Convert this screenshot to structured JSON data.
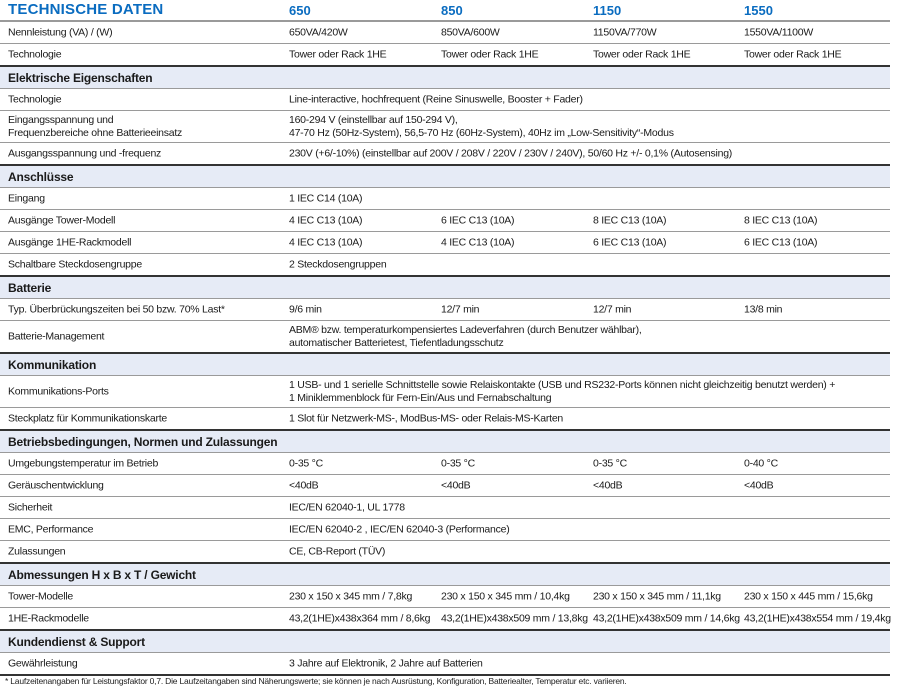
{
  "header": {
    "title": "TECHNISCHE DATEN",
    "models": [
      "650",
      "850",
      "1150",
      "1550"
    ]
  },
  "colors": {
    "title": "#0a6cc0",
    "section_bg": "#e6ebf6"
  },
  "rows": [
    {
      "type": "row",
      "label": [
        "Nennleistung (VA) / (W)"
      ],
      "cells": [
        [
          "650VA/420W"
        ],
        [
          "850VA/600W"
        ],
        [
          "1150VA/770W"
        ],
        [
          "1550VA/1100W"
        ]
      ]
    },
    {
      "type": "row",
      "label": [
        "Technologie"
      ],
      "cells": [
        [
          "Tower oder Rack 1HE"
        ],
        [
          "Tower oder Rack 1HE"
        ],
        [
          "Tower oder Rack 1HE"
        ],
        [
          "Tower oder Rack 1HE"
        ]
      ]
    },
    {
      "type": "section",
      "title": "Elektrische Eigenschaften"
    },
    {
      "type": "row",
      "label": [
        "Technologie"
      ],
      "cells": [
        [
          "Line-interactive, hochfrequent (Reine Sinuswelle, Booster + Fader)"
        ]
      ]
    },
    {
      "type": "row",
      "label": [
        "Eingangsspannung und",
        "Frequenzbereiche ohne Batterieeinsatz"
      ],
      "cells": [
        [
          "160-294 V (einstellbar auf 150-294 V),",
          "47-70 Hz (50Hz-System), 56,5-70 Hz (60Hz-System), 40Hz im „Low-Sensitivity“-Modus"
        ]
      ]
    },
    {
      "type": "row",
      "label": [
        "Ausgangsspannung und -frequenz"
      ],
      "cells": [
        [
          "230V (+6/-10%) (einstellbar auf 200V / 208V / 220V / 230V / 240V), 50/60 Hz +/- 0,1% (Autosensing)"
        ]
      ]
    },
    {
      "type": "section",
      "title": "Anschlüsse"
    },
    {
      "type": "row",
      "label": [
        "Eingang"
      ],
      "cells": [
        [
          "1 IEC C14 (10A)"
        ]
      ]
    },
    {
      "type": "row",
      "label": [
        "Ausgänge Tower-Modell"
      ],
      "cells": [
        [
          "4 IEC C13 (10A)"
        ],
        [
          "6 IEC C13 (10A)"
        ],
        [
          "8 IEC C13 (10A)"
        ],
        [
          "8 IEC C13 (10A)"
        ]
      ]
    },
    {
      "type": "row",
      "label": [
        "Ausgänge 1HE-Rackmodell"
      ],
      "cells": [
        [
          "4 IEC C13 (10A)"
        ],
        [
          "4 IEC C13 (10A)"
        ],
        [
          "6 IEC C13 (10A)"
        ],
        [
          "6 IEC C13 (10A)"
        ]
      ]
    },
    {
      "type": "row",
      "label": [
        "Schaltbare Steckdosengruppe"
      ],
      "cells": [
        [
          "2 Steckdosengruppen"
        ]
      ]
    },
    {
      "type": "section",
      "title": "Batterie"
    },
    {
      "type": "row",
      "label": [
        "Typ. Überbrückungszeiten bei 50 bzw. 70% Last*"
      ],
      "cells": [
        [
          "9/6 min"
        ],
        [
          "12/7 min"
        ],
        [
          "12/7 min"
        ],
        [
          "13/8 min"
        ]
      ]
    },
    {
      "type": "row",
      "label": [
        "Batterie-Management"
      ],
      "cells": [
        [
          "ABM® bzw. temperaturkompensiertes Ladeverfahren (durch Benutzer wählbar),",
          "automatischer Batterietest, Tiefentladungsschutz"
        ]
      ]
    },
    {
      "type": "section",
      "title": "Kommunikation"
    },
    {
      "type": "row",
      "label": [
        "Kommunikations-Ports"
      ],
      "cells": [
        [
          "1 USB- und 1 serielle Schnittstelle sowie Relaiskontakte (USB und RS232-Ports können nicht gleichzeitig benutzt werden) +",
          "1 Miniklemmenblock für Fern-Ein/Aus und Fernabschaltung"
        ]
      ]
    },
    {
      "type": "row",
      "label": [
        "Steckplatz für Kommunikationskarte"
      ],
      "cells": [
        [
          "1 Slot für Netzwerk-MS-, ModBus-MS- oder Relais-MS-Karten"
        ]
      ]
    },
    {
      "type": "section",
      "title": "Betriebsbedingungen, Normen und Zulassungen"
    },
    {
      "type": "row",
      "label": [
        "Umgebungstemperatur im Betrieb"
      ],
      "cells": [
        [
          "0-35 °C"
        ],
        [
          "0-35 °C"
        ],
        [
          "0-35 °C"
        ],
        [
          "0-40 °C"
        ]
      ]
    },
    {
      "type": "row",
      "label": [
        "Geräuschentwicklung"
      ],
      "cells": [
        [
          "<40dB"
        ],
        [
          "<40dB"
        ],
        [
          "<40dB"
        ],
        [
          "<40dB"
        ]
      ]
    },
    {
      "type": "row",
      "label": [
        "Sicherheit"
      ],
      "cells": [
        [
          "IEC/EN 62040-1, UL 1778"
        ]
      ]
    },
    {
      "type": "row",
      "label": [
        "EMC, Performance"
      ],
      "cells": [
        [
          "IEC/EN 62040-2 , IEC/EN 62040-3 (Performance)"
        ]
      ]
    },
    {
      "type": "row",
      "label": [
        "Zulassungen"
      ],
      "cells": [
        [
          "CE, CB-Report (TÜV)"
        ]
      ]
    },
    {
      "type": "section",
      "title": "Abmessungen H x B x T / Gewicht"
    },
    {
      "type": "row",
      "label": [
        "Tower-Modelle"
      ],
      "cells": [
        [
          "230 x 150 x 345 mm / 7,8kg"
        ],
        [
          "230 x 150 x 345 mm / 10,4kg"
        ],
        [
          "230 x 150 x 345 mm / 11,1kg"
        ],
        [
          "230 x 150 x 445 mm / 15,6kg"
        ]
      ]
    },
    {
      "type": "row",
      "label": [
        "1HE-Rackmodelle"
      ],
      "cells": [
        [
          "43,2(1HE)x438x364 mm / 8,6kg"
        ],
        [
          "43,2(1HE)x438x509 mm / 13,8kg"
        ],
        [
          "43,2(1HE)x438x509 mm / 14,6kg"
        ],
        [
          "43,2(1HE)x438x554 mm / 19,4kg"
        ]
      ]
    },
    {
      "type": "section",
      "title": "Kundendienst & Support"
    },
    {
      "type": "row",
      "label": [
        "Gewährleistung"
      ],
      "cells": [
        [
          "3 Jahre auf Elektronik, 2 Jahre auf Batterien"
        ]
      ]
    }
  ],
  "footnote": "* Laufzeitenangaben für Leistungsfaktor 0,7. Die Laufzeitangaben sind Näherungswerte; sie können je nach Ausrüstung, Konfiguration, Batteriealter, Temperatur etc. variieren."
}
